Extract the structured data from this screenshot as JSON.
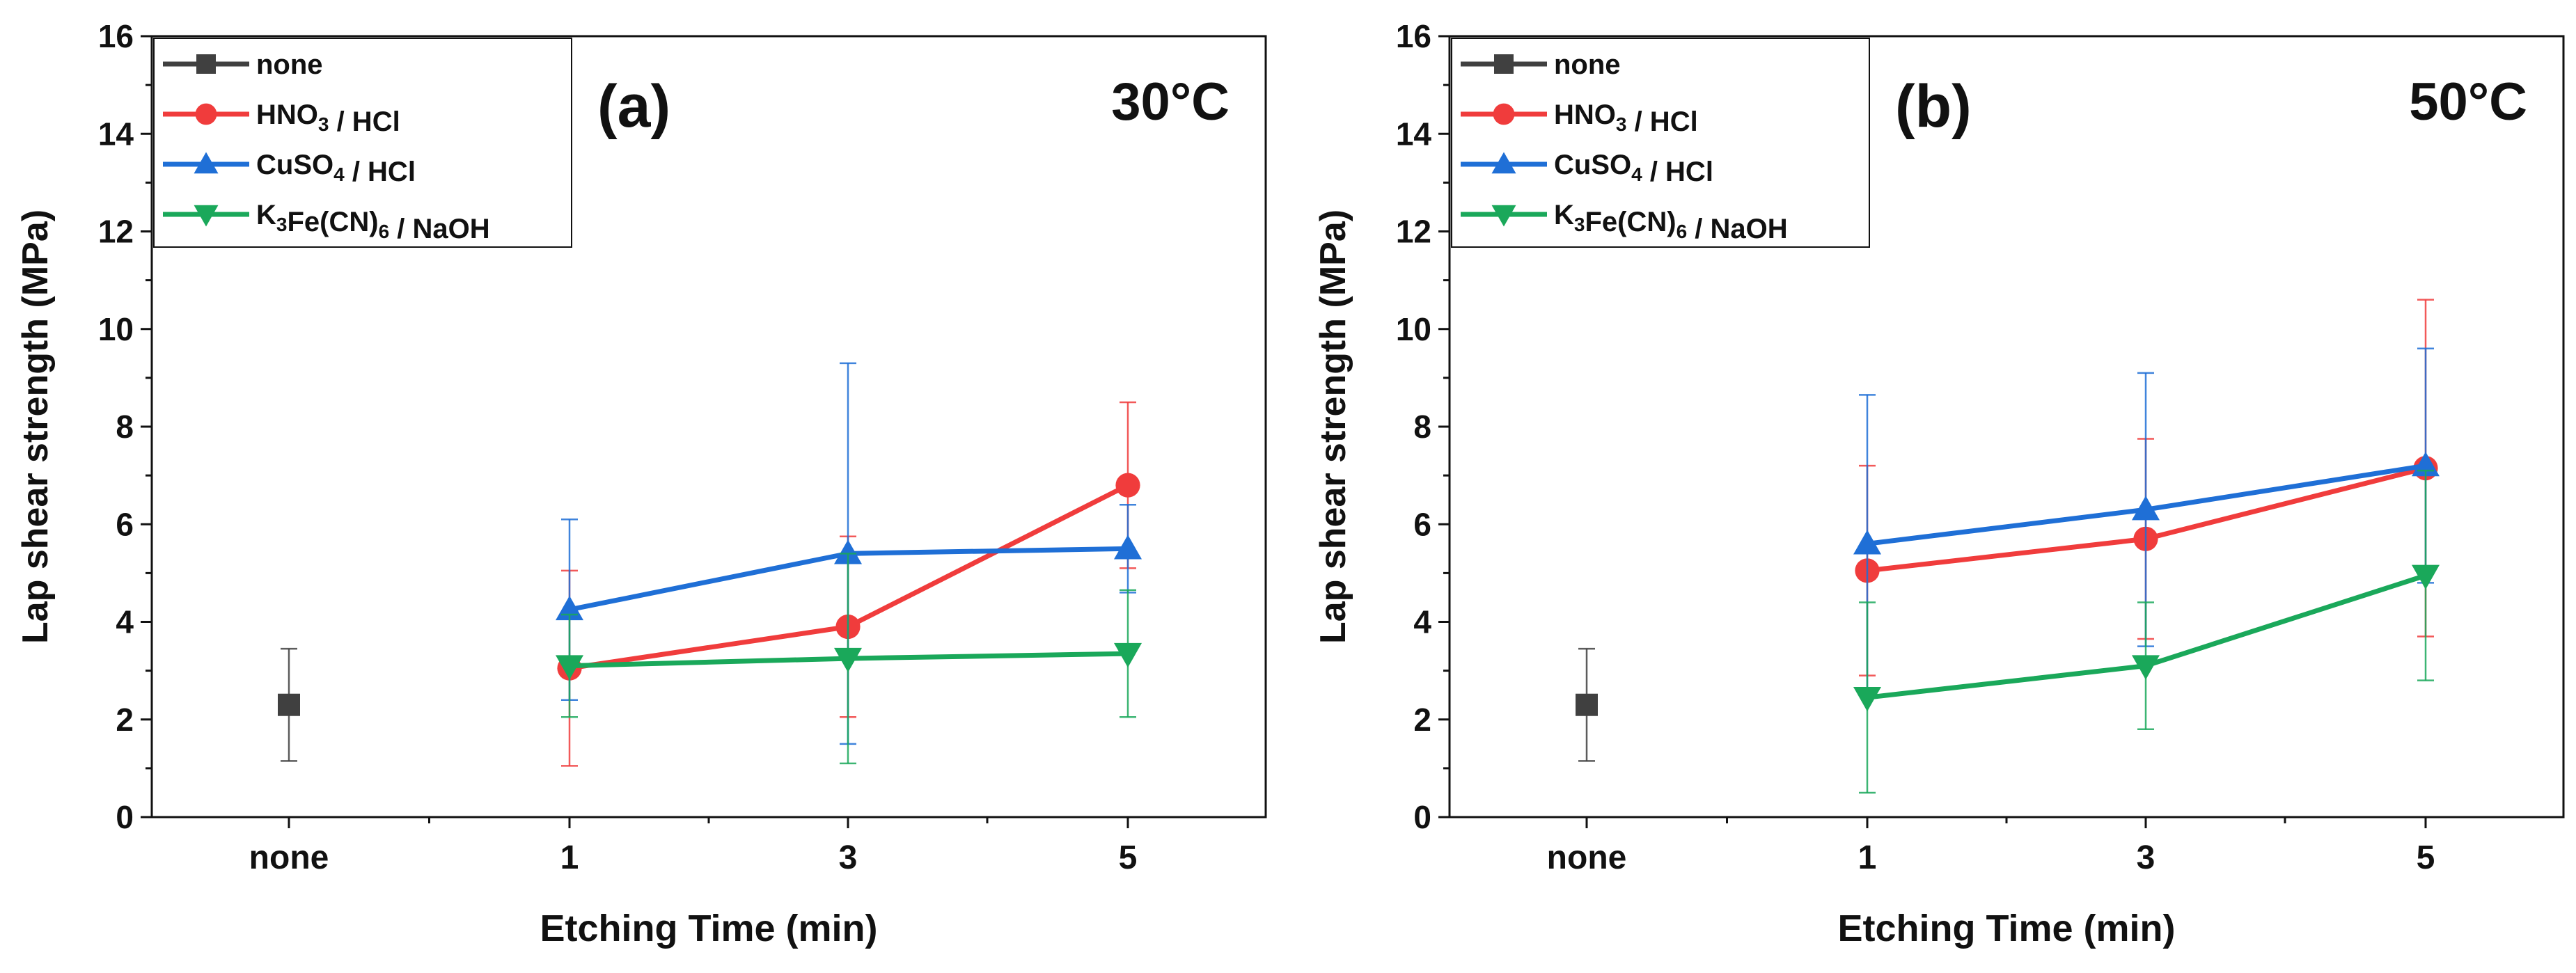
{
  "chart_data": [
    {
      "type": "line",
      "panel_label": "(a)",
      "condition_label": "30°C",
      "xlabel": "Etching Time (min)",
      "ylabel": "Lap shear strength (MPa)",
      "categories": [
        "none",
        "1",
        "3",
        "5"
      ],
      "ylim": [
        0,
        16
      ],
      "yticks": [
        0,
        2,
        4,
        6,
        8,
        10,
        12,
        14,
        16
      ],
      "grid": false,
      "legend_position": "top-left",
      "series": [
        {
          "name": "none",
          "color": "#404040",
          "marker": "square",
          "values": [
            2.3,
            null,
            null,
            null
          ],
          "errors": [
            1.15,
            null,
            null,
            null
          ]
        },
        {
          "name": "HNO3 / HCl",
          "color": "#f03c3c",
          "marker": "circle",
          "values": [
            null,
            3.05,
            3.9,
            6.8
          ],
          "errors": [
            null,
            2.0,
            1.85,
            1.7
          ]
        },
        {
          "name": "CuSO4 / HCl",
          "color": "#1f6fd6",
          "marker": "triangle-up",
          "values": [
            null,
            4.25,
            5.4,
            5.5
          ],
          "errors": [
            null,
            1.85,
            3.9,
            0.9
          ]
        },
        {
          "name": "K3Fe(CN)6 / NaOH",
          "color": "#1aa85a",
          "marker": "triangle-down",
          "values": [
            null,
            3.1,
            3.25,
            3.35
          ],
          "errors": [
            null,
            1.05,
            2.15,
            1.3
          ]
        }
      ]
    },
    {
      "type": "line",
      "panel_label": "(b)",
      "condition_label": "50°C",
      "xlabel": "Etching Time (min)",
      "ylabel": "Lap shear strength (MPa)",
      "categories": [
        "none",
        "1",
        "3",
        "5"
      ],
      "ylim": [
        0,
        16
      ],
      "yticks": [
        0,
        2,
        4,
        6,
        8,
        10,
        12,
        14,
        16
      ],
      "grid": false,
      "legend_position": "top-left",
      "series": [
        {
          "name": "none",
          "color": "#404040",
          "marker": "square",
          "values": [
            2.3,
            null,
            null,
            null
          ],
          "errors": [
            1.15,
            null,
            null,
            null
          ]
        },
        {
          "name": "HNO3 / HCl",
          "color": "#f03c3c",
          "marker": "circle",
          "values": [
            null,
            5.05,
            5.7,
            7.15
          ],
          "errors": [
            null,
            2.15,
            2.05,
            3.45
          ]
        },
        {
          "name": "CuSO4 / HCl",
          "color": "#1f6fd6",
          "marker": "triangle-up",
          "values": [
            null,
            5.6,
            6.3,
            7.2
          ],
          "errors": [
            null,
            3.05,
            2.8,
            2.4
          ]
        },
        {
          "name": "K3Fe(CN)6 / NaOH",
          "color": "#1aa85a",
          "marker": "triangle-down",
          "values": [
            null,
            2.45,
            3.1,
            4.95
          ],
          "errors": [
            null,
            1.95,
            1.3,
            2.15
          ]
        }
      ]
    }
  ]
}
